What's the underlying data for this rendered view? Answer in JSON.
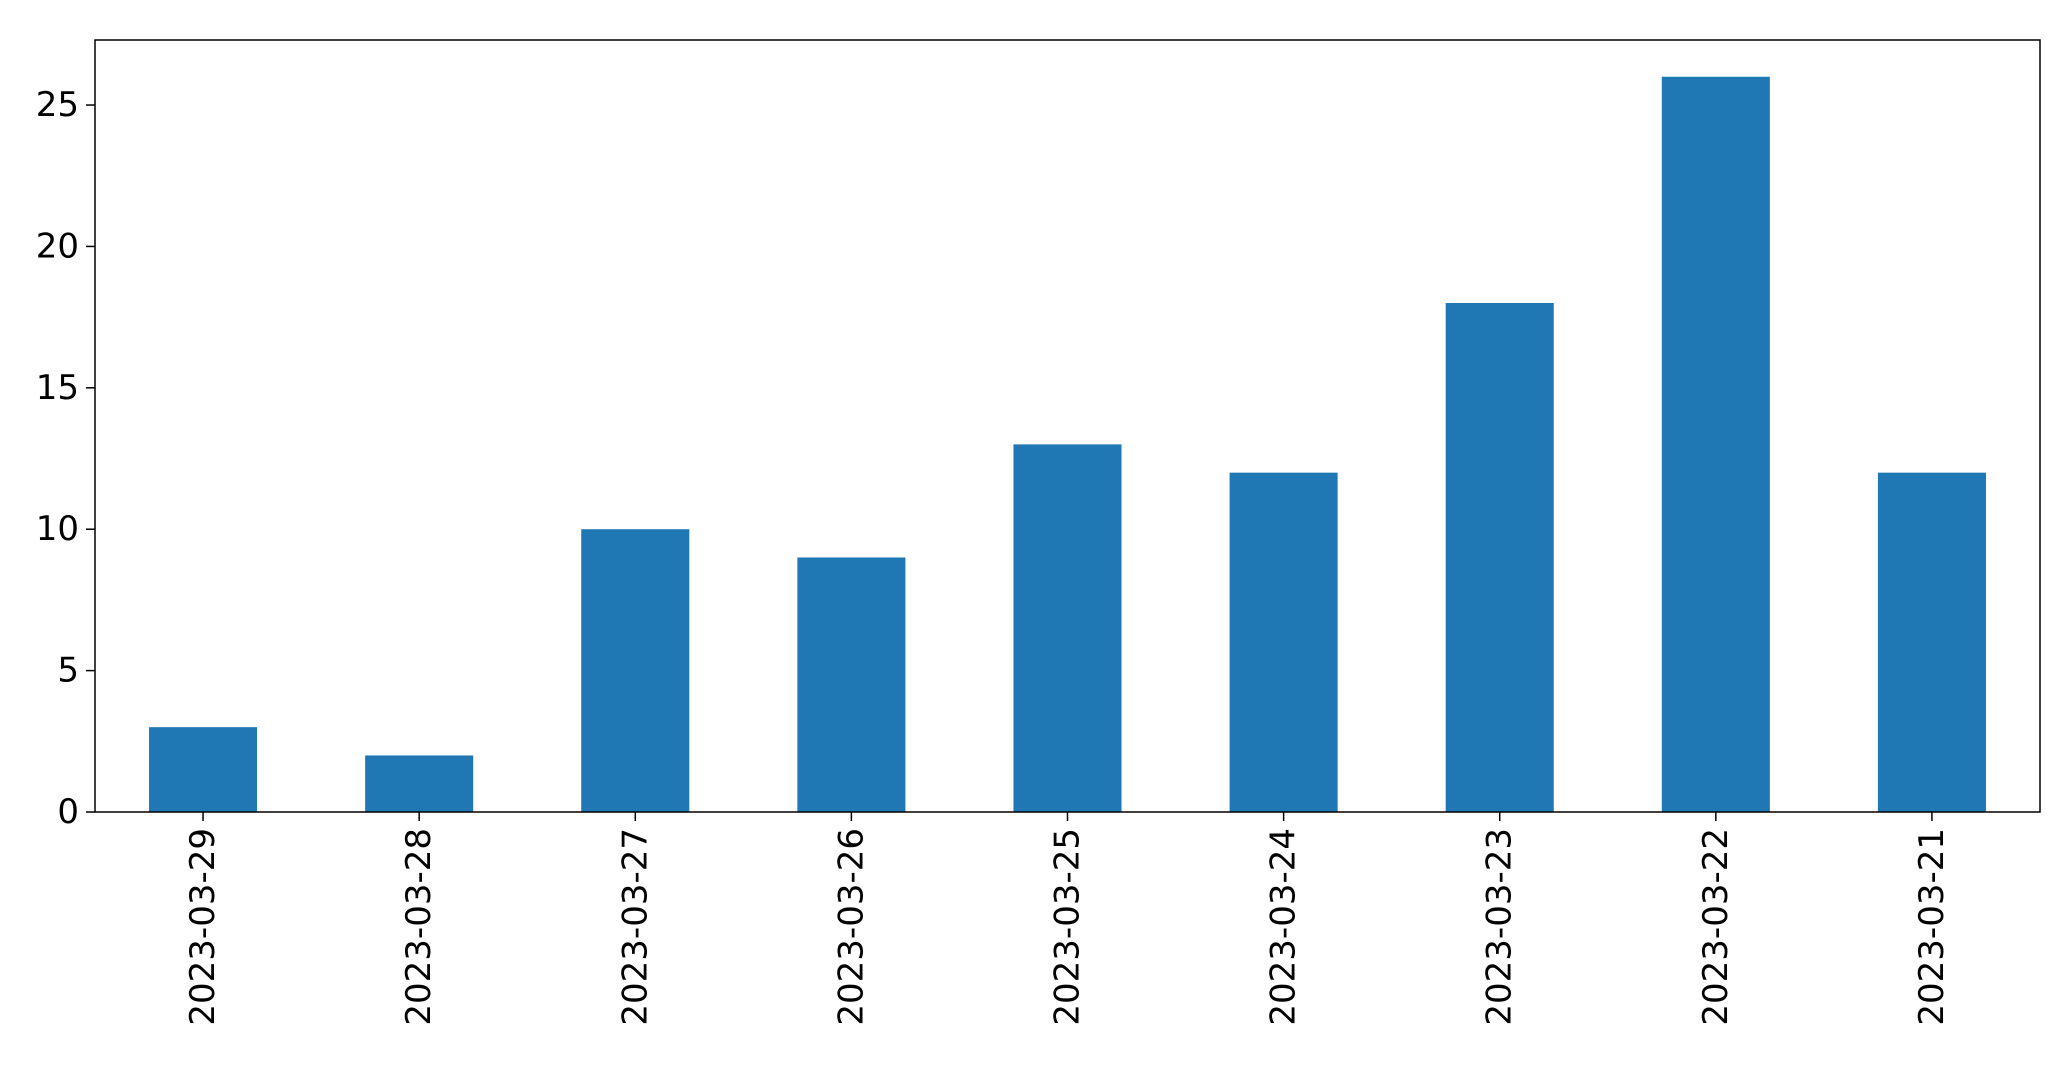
{
  "chart_data": {
    "type": "bar",
    "title": "",
    "xlabel": "",
    "ylabel": "",
    "categories": [
      "2023-03-29",
      "2023-03-28",
      "2023-03-27",
      "2023-03-26",
      "2023-03-25",
      "2023-03-24",
      "2023-03-23",
      "2023-03-22",
      "2023-03-21"
    ],
    "values": [
      3,
      2,
      10,
      9,
      13,
      12,
      18,
      26,
      12
    ],
    "ylim": [
      0,
      27.3
    ],
    "yticks": [
      0,
      5,
      10,
      15,
      20,
      25
    ],
    "grid": false,
    "legend": "none",
    "bar_color": "#1f77b4",
    "tick_label_rotation": "vertical"
  }
}
